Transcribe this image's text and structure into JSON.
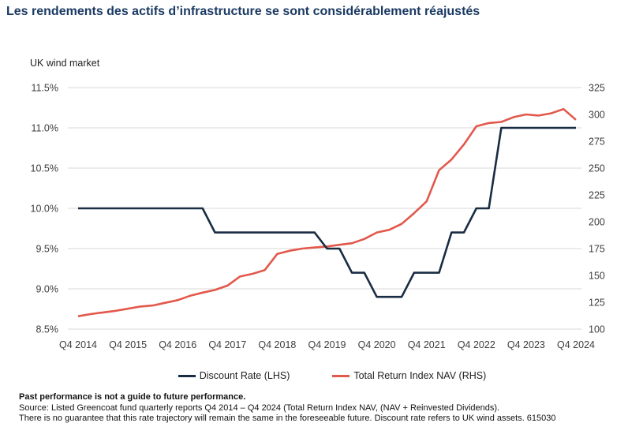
{
  "page": {
    "title": "Les rendements des actifs d’infrastructure se sont considérablement réajustés",
    "subtitle": "UK wind market"
  },
  "chart_data": {
    "type": "line",
    "title": "UK wind market",
    "xlabel": "",
    "grid": true,
    "legend_position": "bottom",
    "grid_color": "#d9d9d9",
    "x": [
      "Q4 2014",
      "Q1 2015",
      "Q2 2015",
      "Q3 2015",
      "Q4 2015",
      "Q1 2016",
      "Q2 2016",
      "Q3 2016",
      "Q4 2016",
      "Q1 2017",
      "Q2 2017",
      "Q3 2017",
      "Q4 2017",
      "Q1 2018",
      "Q2 2018",
      "Q3 2018",
      "Q4 2018",
      "Q1 2019",
      "Q2 2019",
      "Q3 2019",
      "Q4 2019",
      "Q1 2020",
      "Q2 2020",
      "Q3 2020",
      "Q4 2020",
      "Q1 2021",
      "Q2 2021",
      "Q3 2021",
      "Q4 2021",
      "Q1 2022",
      "Q2 2022",
      "Q3 2022",
      "Q4 2022",
      "Q1 2023",
      "Q2 2023",
      "Q3 2023",
      "Q4 2023",
      "Q1 2024",
      "Q2 2024",
      "Q3 2024",
      "Q4 2024"
    ],
    "x_tick_every": 4,
    "left_axis": {
      "min": 8.5,
      "max": 11.5,
      "tick_values": [
        11.5,
        11.0,
        10.5,
        10.0,
        9.5,
        9.0,
        8.5
      ],
      "tick_labels": [
        "11.5%",
        "11.0%",
        "10.5%",
        "10.0%",
        "9.5%",
        "9.0%",
        "8.5%"
      ]
    },
    "right_axis": {
      "min": 100,
      "max": 325,
      "tick_values": [
        325,
        300,
        275,
        250,
        225,
        200,
        175,
        150,
        125,
        100
      ],
      "tick_labels": [
        "325",
        "300",
        "275",
        "250",
        "225",
        "200",
        "175",
        "150",
        "125",
        "100"
      ]
    },
    "series": [
      {
        "name": "Discount Rate (LHS)",
        "axis": "left",
        "color": "#182c42",
        "values": [
          10,
          10,
          10,
          10,
          10,
          10,
          10,
          10,
          10,
          10,
          10,
          9.7,
          9.7,
          9.7,
          9.7,
          9.7,
          9.7,
          9.7,
          9.7,
          9.7,
          9.5,
          9.5,
          9.2,
          9.2,
          8.9,
          8.9,
          8.9,
          9.2,
          9.2,
          9.2,
          9.7,
          9.7,
          10,
          10,
          11,
          11,
          11,
          11,
          11,
          11,
          11
        ]
      },
      {
        "name": "Total Return Index NAV (RHS)",
        "axis": "right",
        "color": "#e2584b",
        "values": [
          112,
          114,
          115.5,
          117,
          119,
          121,
          122,
          124.5,
          127,
          131,
          134,
          136.5,
          140.5,
          149,
          151.5,
          155,
          170,
          173,
          175,
          176,
          177,
          178.5,
          180,
          184,
          190,
          192.5,
          198,
          208,
          219,
          248,
          258,
          272,
          289,
          292,
          293,
          297.5,
          300,
          299,
          301,
          305,
          295
        ]
      }
    ]
  },
  "footer": {
    "line1": "Past performance is not a guide to future performance.",
    "line2": "Source: Listed Greencoat fund quarterly reports Q4 2014 – Q4 2024 (Total Return Index NAV, (NAV + Reinvested Dividends).",
    "line3": "There is no guarantee that this rate trajectory will remain the same in the foreseeable future. Discount rate refers to UK wind assets. 615030"
  }
}
